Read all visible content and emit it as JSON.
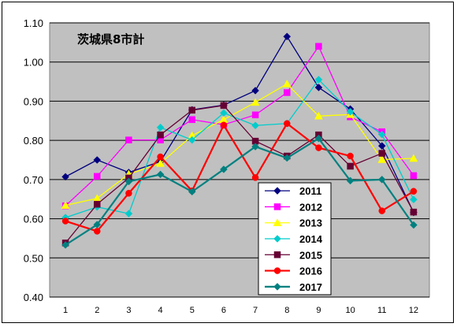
{
  "chart_data": {
    "type": "line",
    "title": "茨城県8市計",
    "xlabel": "",
    "ylabel": "",
    "categories": [
      "1",
      "2",
      "3",
      "4",
      "5",
      "6",
      "7",
      "8",
      "9",
      "10",
      "11",
      "12"
    ],
    "ylim": [
      0.4,
      1.1
    ],
    "yticks": [
      "0.40",
      "0.50",
      "0.60",
      "0.70",
      "0.80",
      "0.90",
      "1.00",
      "1.10"
    ],
    "grid": true,
    "legend_position": "bottom-right",
    "series": [
      {
        "name": "2011",
        "color": "#00007f",
        "marker": "diamond",
        "values": [
          0.707,
          0.75,
          0.718,
          0.746,
          0.878,
          0.89,
          0.927,
          1.065,
          0.935,
          0.88,
          0.786,
          0.616
        ]
      },
      {
        "name": "2012",
        "color": "#ff00ff",
        "marker": "square",
        "values": [
          0.633,
          0.708,
          0.801,
          0.801,
          0.853,
          0.84,
          0.865,
          0.922,
          1.04,
          0.86,
          0.822,
          0.71
        ]
      },
      {
        "name": "2013",
        "color": "#ffff00",
        "marker": "triangle",
        "values": [
          0.634,
          0.652,
          0.714,
          0.741,
          0.812,
          0.853,
          0.897,
          0.944,
          0.862,
          0.866,
          0.751,
          0.754
        ]
      },
      {
        "name": "2014",
        "color": "#00cccc",
        "marker": "diamond",
        "values": [
          0.603,
          0.63,
          0.613,
          0.833,
          0.801,
          0.87,
          0.838,
          0.843,
          0.955,
          0.873,
          0.815,
          0.649
        ]
      },
      {
        "name": "2015",
        "color": "#660033",
        "marker": "square",
        "values": [
          0.538,
          0.637,
          0.704,
          0.814,
          0.877,
          0.889,
          0.798,
          0.76,
          0.814,
          0.734,
          0.767,
          0.617
        ]
      },
      {
        "name": "2016",
        "color": "#ff0000",
        "marker": "circle",
        "values": [
          0.594,
          0.568,
          0.665,
          0.758,
          0.671,
          0.839,
          0.705,
          0.843,
          0.781,
          0.76,
          0.62,
          0.67
        ]
      },
      {
        "name": "2017",
        "color": "#008080",
        "marker": "diamond",
        "values": [
          0.533,
          0.585,
          0.695,
          0.713,
          0.669,
          0.726,
          0.784,
          0.755,
          0.805,
          0.697,
          0.7,
          0.584
        ]
      }
    ]
  }
}
